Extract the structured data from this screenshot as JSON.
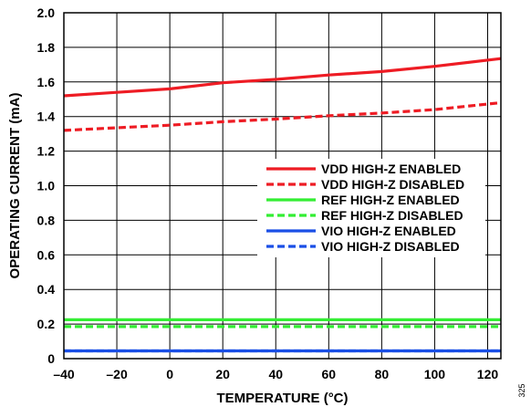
{
  "chart_data": {
    "type": "line",
    "title": "",
    "xlabel": "TEMPERATURE (°C)",
    "ylabel": "OPERATING CURRENT (mA)",
    "xlim": [
      -40,
      125
    ],
    "ylim": [
      0,
      2.0
    ],
    "x_ticks": [
      -40,
      -20,
      0,
      20,
      40,
      60,
      80,
      100,
      120
    ],
    "x_tick_labels": [
      "–40",
      "–20",
      "0",
      "20",
      "40",
      "60",
      "80",
      "100",
      "120"
    ],
    "y_ticks": [
      0,
      0.2,
      0.4,
      0.6,
      0.8,
      1.0,
      1.2,
      1.4,
      1.6,
      1.8,
      2.0
    ],
    "y_tick_labels": [
      "0",
      "0.2",
      "0.4",
      "0.6",
      "0.8",
      "1.0",
      "1.2",
      "1.4",
      "1.6",
      "1.8",
      "2.0"
    ],
    "grid": true,
    "legend_position": "right",
    "series": [
      {
        "name": "VDD HIGH-Z ENABLED",
        "color": "#ee1c24",
        "dash": false,
        "x": [
          -40,
          -20,
          0,
          20,
          40,
          60,
          80,
          100,
          125
        ],
        "y": [
          1.52,
          1.54,
          1.56,
          1.595,
          1.615,
          1.64,
          1.66,
          1.69,
          1.735
        ]
      },
      {
        "name": "VDD HIGH-Z DISABLED",
        "color": "#ee1c24",
        "dash": true,
        "x": [
          -40,
          -20,
          0,
          20,
          40,
          60,
          80,
          100,
          125
        ],
        "y": [
          1.32,
          1.335,
          1.35,
          1.37,
          1.385,
          1.405,
          1.42,
          1.44,
          1.48
        ]
      },
      {
        "name": "REF HIGH-Z ENABLED",
        "color": "#33ee33",
        "dash": false,
        "x": [
          -40,
          125
        ],
        "y": [
          0.225,
          0.225
        ]
      },
      {
        "name": "REF HIGH-Z DISABLED",
        "color": "#33ee33",
        "dash": true,
        "x": [
          -40,
          125
        ],
        "y": [
          0.185,
          0.185
        ]
      },
      {
        "name": "VIO HIGH-Z ENABLED",
        "color": "#1a4fe6",
        "dash": false,
        "x": [
          -40,
          125
        ],
        "y": [
          0.045,
          0.045
        ]
      },
      {
        "name": "VIO HIGH-Z DISABLED",
        "color": "#1a4fe6",
        "dash": true,
        "x": [
          -40,
          125
        ],
        "y": [
          0.045,
          0.045
        ]
      }
    ],
    "figure_id": "325"
  }
}
